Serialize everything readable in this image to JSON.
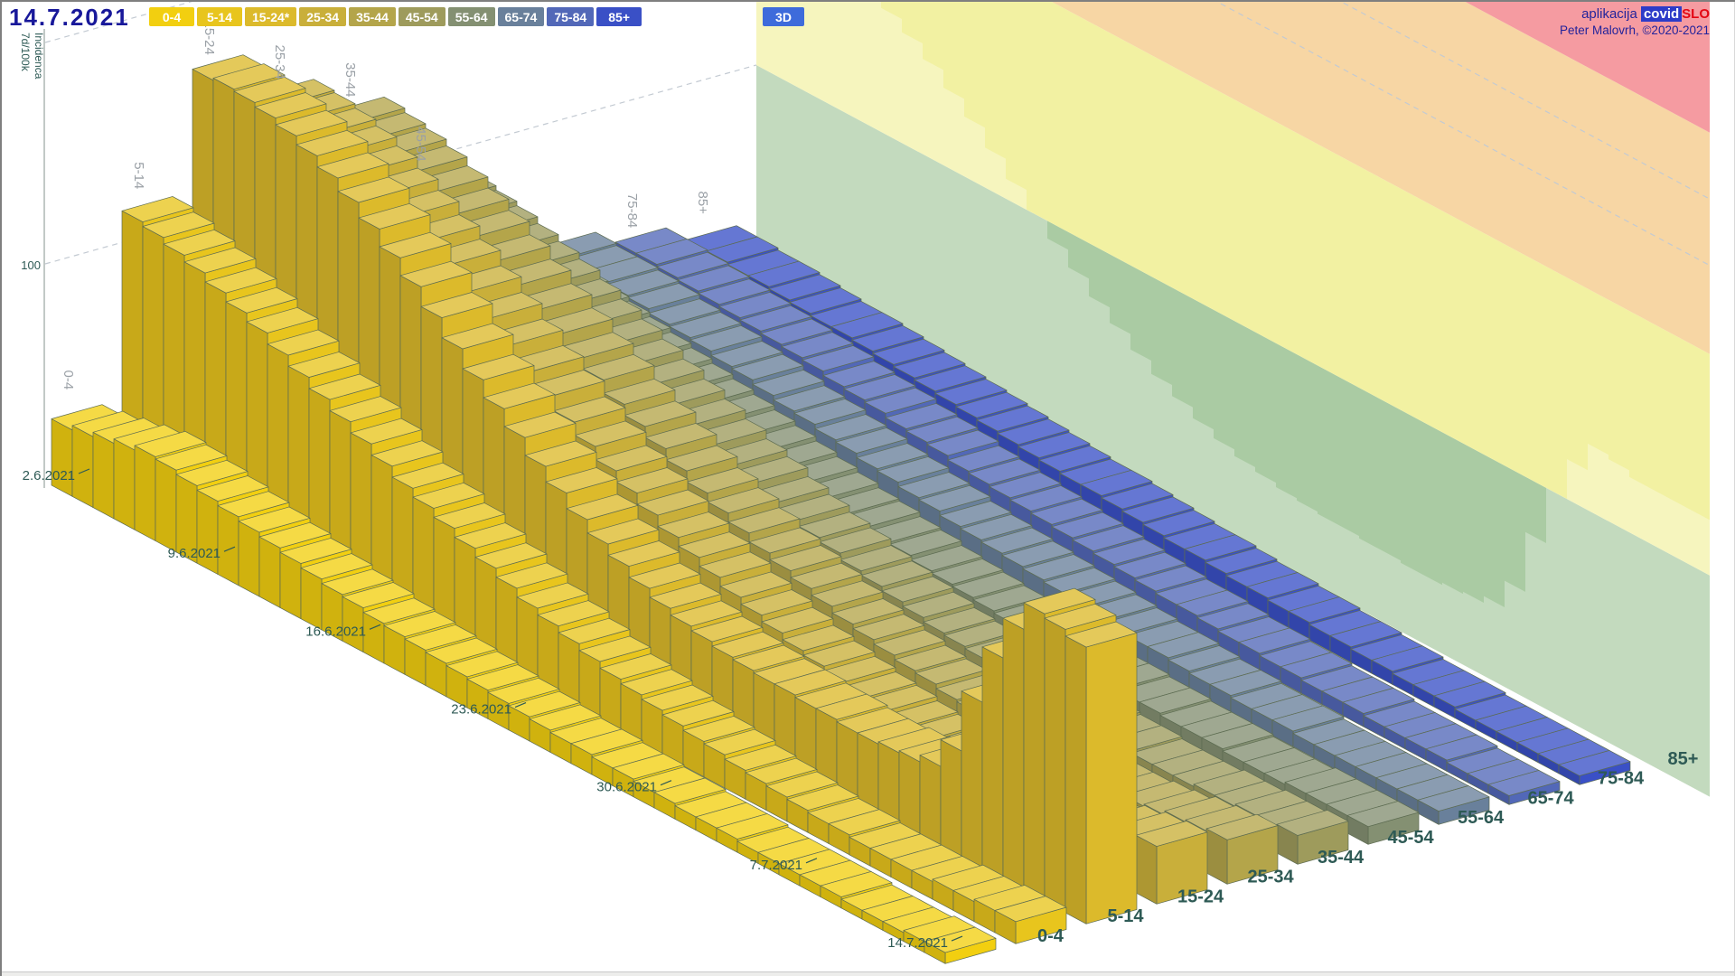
{
  "header": {
    "date": "14.7.2021",
    "mode_button": "3D"
  },
  "credits": {
    "app_prefix": "aplikacija",
    "brand_bold": "covid",
    "brand_suffix": "SLO",
    "author": "Peter Malovrh, ©2020-2021"
  },
  "y_axis": {
    "title_line1": "7d/100k",
    "title_line2": "Incidenca",
    "tick_label": "100"
  },
  "age_buttons": [
    {
      "label": "0-4",
      "color": "#F2CF10"
    },
    {
      "label": "5-14",
      "color": "#E8C51D"
    },
    {
      "label": "15-24*",
      "color": "#DCBA2B"
    },
    {
      "label": "25-34",
      "color": "#C9AF3A"
    },
    {
      "label": "35-44",
      "color": "#B4A54A"
    },
    {
      "label": "45-54",
      "color": "#9E9B5C"
    },
    {
      "label": "55-64",
      "color": "#849072"
    },
    {
      "label": "65-74",
      "color": "#69809B"
    },
    {
      "label": "75-84",
      "color": "#5268B8"
    },
    {
      "label": "85+",
      "color": "#3A50C6"
    }
  ],
  "chart_data": {
    "type": "bar",
    "projection": "3d-oblique",
    "title": "",
    "xlabel": "",
    "ylabel": "7d/100k Incidenca",
    "y_tick_labels": [
      100
    ],
    "date_start": "2.6.2021",
    "date_end": "14.7.2021",
    "n_days": 43,
    "date_ticks": [
      "2.6.2021",
      "9.6.2021",
      "16.6.2021",
      "23.6.2021",
      "30.6.2021",
      "7.7.2021",
      "14.7.2021"
    ],
    "date_tick_indices": [
      0,
      7,
      14,
      21,
      28,
      35,
      42
    ],
    "series": [
      {
        "name": "0-4",
        "color": "#F2CF10",
        "values": [
          30,
          32,
          34,
          36,
          38,
          37,
          35,
          33,
          31,
          29,
          27,
          25,
          23,
          21,
          20,
          18,
          17,
          16,
          15,
          14,
          13,
          12,
          11,
          10,
          9,
          9,
          8,
          8,
          7,
          7,
          6,
          6,
          6,
          5,
          5,
          5,
          5,
          5,
          4,
          4,
          4,
          5,
          5
        ]
      },
      {
        "name": "5-14",
        "color": "#E8C51D",
        "values": [
          115,
          113,
          110,
          107,
          103,
          99,
          95,
          90,
          85,
          80,
          75,
          70,
          65,
          60,
          56,
          52,
          48,
          44,
          40,
          36,
          33,
          30,
          27,
          24,
          22,
          20,
          18,
          16,
          15,
          13,
          12,
          11,
          10,
          9,
          9,
          8,
          8,
          8,
          8,
          9,
          9,
          10,
          10
        ]
      },
      {
        "name": "15-24",
        "color": "#DCBA2B",
        "values": [
          170,
          171,
          170,
          168,
          165,
          161,
          156,
          150,
          143,
          135,
          127,
          118,
          109,
          100,
          92,
          84,
          76,
          69,
          62,
          56,
          51,
          46,
          42,
          39,
          37,
          35,
          34,
          33,
          33,
          32,
          32,
          31,
          31,
          32,
          33,
          36,
          48,
          75,
          100,
          118,
          130,
          128,
          125
        ]
      },
      {
        "name": "25-34",
        "color": "#C9AF3A",
        "values": [
          150,
          149,
          147,
          144,
          140,
          135,
          130,
          124,
          118,
          111,
          104,
          97,
          90,
          84,
          77,
          71,
          65,
          60,
          55,
          50,
          46,
          42,
          38,
          35,
          32,
          29,
          27,
          25,
          23,
          22,
          20,
          19,
          18,
          18,
          17,
          17,
          16,
          17,
          19,
          21,
          23,
          25,
          26
        ]
      },
      {
        "name": "35-44",
        "color": "#B4A54A",
        "values": [
          133,
          131,
          129,
          126,
          122,
          117,
          112,
          106,
          100,
          94,
          88,
          82,
          77,
          71,
          66,
          61,
          56,
          51,
          47,
          43,
          39,
          36,
          33,
          30,
          27,
          25,
          23,
          21,
          20,
          18,
          17,
          16,
          15,
          15,
          14,
          14,
          14,
          14,
          15,
          16,
          18,
          19,
          20
        ]
      },
      {
        "name": "45-54",
        "color": "#9E9B5C",
        "values": [
          95,
          94,
          92,
          90,
          87,
          84,
          81,
          77,
          73,
          69,
          65,
          61,
          57,
          53,
          49,
          45,
          42,
          38,
          35,
          32,
          30,
          27,
          25,
          23,
          21,
          19,
          18,
          17,
          15,
          14,
          13,
          13,
          12,
          11,
          11,
          10,
          10,
          10,
          11,
          11,
          12,
          12,
          13
        ]
      },
      {
        "name": "55-64",
        "color": "#849072",
        "values": [
          55,
          54,
          53,
          52,
          50,
          48,
          46,
          44,
          42,
          40,
          38,
          36,
          34,
          32,
          30,
          28,
          26,
          24,
          23,
          21,
          20,
          18,
          17,
          16,
          15,
          14,
          13,
          12,
          11,
          10,
          10,
          9,
          9,
          8,
          8,
          8,
          7,
          7,
          7,
          8,
          8,
          8,
          8
        ]
      },
      {
        "name": "65-74",
        "color": "#69809B",
        "values": [
          45,
          44,
          44,
          43,
          42,
          40,
          39,
          38,
          36,
          35,
          33,
          31,
          30,
          28,
          27,
          25,
          24,
          22,
          21,
          19,
          18,
          17,
          16,
          15,
          14,
          13,
          12,
          11,
          10,
          10,
          9,
          8,
          8,
          7,
          7,
          7,
          6,
          6,
          6,
          6,
          6,
          6,
          6
        ]
      },
      {
        "name": "75-84",
        "color": "#5268B8",
        "values": [
          38,
          38,
          37,
          36,
          35,
          34,
          33,
          32,
          31,
          30,
          28,
          27,
          26,
          24,
          23,
          22,
          20,
          19,
          18,
          17,
          16,
          15,
          14,
          13,
          12,
          11,
          10,
          10,
          9,
          8,
          8,
          7,
          7,
          6,
          6,
          6,
          5,
          5,
          5,
          5,
          4,
          4,
          4
        ]
      },
      {
        "name": "85+",
        "color": "#3A50C6",
        "values": [
          30,
          30,
          29,
          29,
          28,
          27,
          26,
          26,
          25,
          24,
          23,
          22,
          21,
          20,
          19,
          18,
          17,
          16,
          15,
          15,
          14,
          13,
          12,
          11,
          11,
          10,
          9,
          9,
          8,
          8,
          7,
          7,
          6,
          6,
          5,
          5,
          5,
          4,
          4,
          4,
          4,
          4,
          4
        ]
      }
    ],
    "top_row_labels_shown": [
      0,
      1,
      2,
      3,
      4,
      5,
      8,
      9
    ],
    "left_grid_levels": [
      100,
      200
    ],
    "wall_bands": [
      {
        "upto": 100,
        "color": "#AACBA3"
      },
      {
        "upto": 200,
        "color": "#F2F1A2"
      },
      {
        "upto": 300,
        "color": "#F7D6A4"
      },
      {
        "upto": 999,
        "color": "#F59BA1"
      }
    ],
    "wall_dashed_levels": [
      240,
      270
    ],
    "legend_position": "top",
    "grid": "dashed"
  }
}
